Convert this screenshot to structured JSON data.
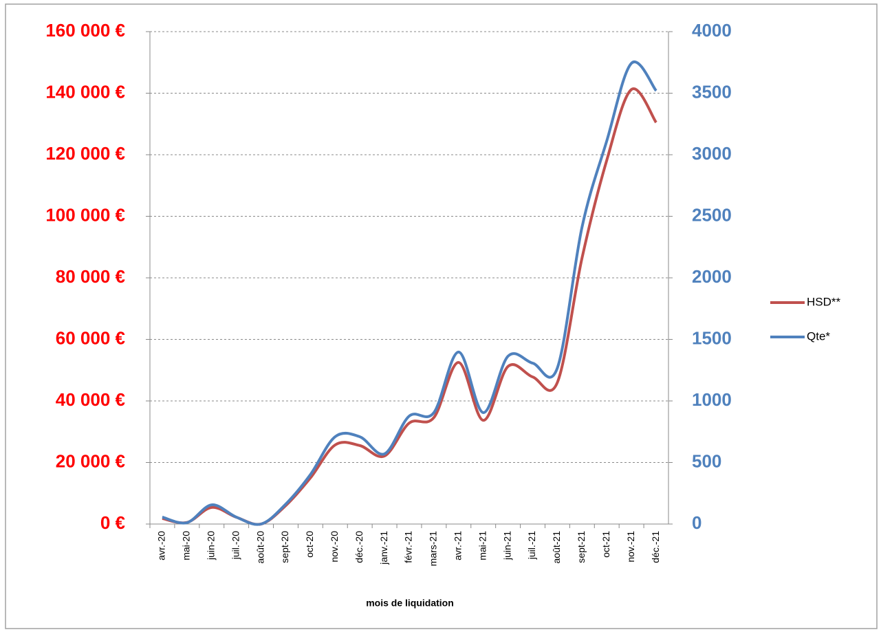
{
  "chart_data": {
    "type": "line",
    "xlabel": "mois de liquidation",
    "categories": [
      "avr.-20",
      "mai-20",
      "juin-20",
      "juil.-20",
      "août-20",
      "sept-20",
      "oct-20",
      "nov.-20",
      "déc.-20",
      "janv.-21",
      "févr.-21",
      "mars-21",
      "avr.-21",
      "mai-21",
      "juin-21",
      "juil.-21",
      "août-21",
      "sept-21",
      "oct-21",
      "nov.-21",
      "déc.-21"
    ],
    "series": [
      {
        "name": "HSD**",
        "color": "#c0504d",
        "values": [
          1800,
          500,
          5400,
          2200,
          0,
          6000,
          15000,
          25700,
          25500,
          22100,
          32800,
          34600,
          52500,
          33700,
          51200,
          47800,
          46000,
          86500,
          118200,
          141200,
          130500
        ]
      },
      {
        "name": "Qte*",
        "color": "#4f81bd",
        "axis": "y2",
        "values": [
          56,
          11,
          156,
          56,
          0,
          162,
          402,
          709,
          709,
          570,
          877,
          905,
          1397,
          905,
          1363,
          1307,
          1268,
          2413,
          3112,
          3743,
          3520
        ]
      }
    ],
    "ylim": [
      0,
      160000
    ],
    "yticks": [
      {
        "value": 0,
        "label": "0 €"
      },
      {
        "value": 20000,
        "label": "20 000 €"
      },
      {
        "value": 40000,
        "label": "40 000 €"
      },
      {
        "value": 60000,
        "label": "60 000 €"
      },
      {
        "value": 80000,
        "label": "80 000 €"
      },
      {
        "value": 100000,
        "label": "100 000 €"
      },
      {
        "value": 120000,
        "label": "120 000 €"
      },
      {
        "value": 140000,
        "label": "140 000 €"
      },
      {
        "value": 160000,
        "label": "160 000 €"
      }
    ],
    "y2lim": [
      0,
      4000
    ],
    "y2ticks": [
      0,
      500,
      1000,
      1500,
      2000,
      2500,
      3000,
      3500,
      4000
    ],
    "grid": true,
    "legend": "right"
  }
}
